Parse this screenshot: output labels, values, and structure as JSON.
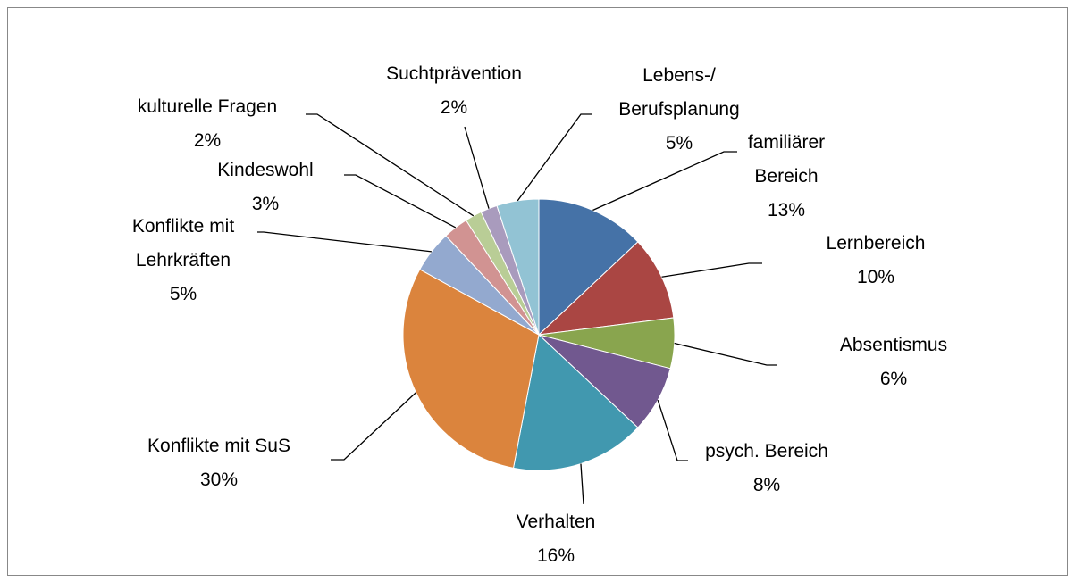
{
  "chart_data": {
    "type": "pie",
    "categories": [
      "familiärer Bereich",
      "Lernbereich",
      "Absentismus",
      "psych. Bereich",
      "Verhalten",
      "Konflikte mit SuS",
      "Konflikte mit Lehrkräften",
      "Kindeswohl",
      "kulturelle Fragen",
      "Suchtprävention",
      "Lebens-/ Berufsplanung"
    ],
    "values": [
      13,
      10,
      6,
      8,
      16,
      30,
      5,
      3,
      2,
      2,
      5
    ],
    "value_labels": [
      "13%",
      "10%",
      "6%",
      "8%",
      "16%",
      "30%",
      "5%",
      "3%",
      "2%",
      "2%",
      "5%"
    ],
    "colors": [
      "#4572A7",
      "#AA4643",
      "#89A54E",
      "#71588F",
      "#4198AF",
      "#DB843D",
      "#93A9CF",
      "#D19392",
      "#B9CD96",
      "#A99BBD",
      "#92C3D4"
    ]
  }
}
